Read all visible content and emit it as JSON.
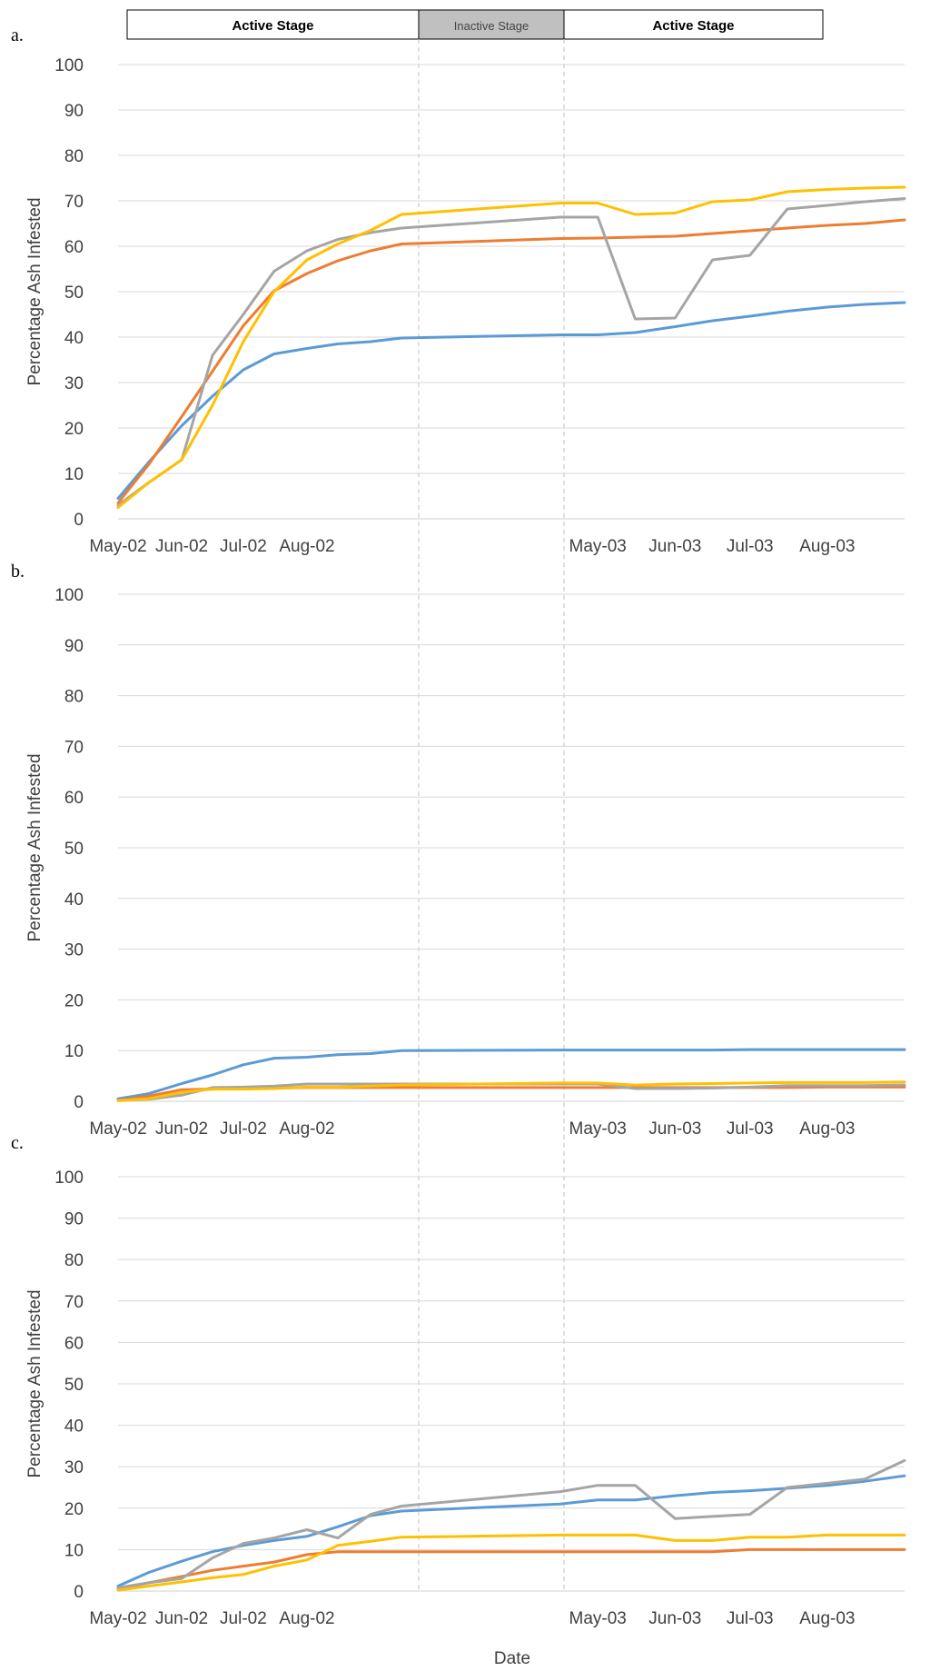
{
  "stages": [
    {
      "label": "Active Stage",
      "fill": "#ffffff",
      "start": "2002-05-01",
      "end": "2002-09-01"
    },
    {
      "label": "Inactive Stage",
      "fill": "#c0c0c0",
      "start": "2002-09-01",
      "end": "2003-05-01"
    },
    {
      "label": "Active Stage",
      "fill": "#ffffff",
      "start": "2003-05-01",
      "end": "2003-09-01"
    }
  ],
  "x_axis_label": "Date",
  "colors": {
    "blue": "#5b9bd5",
    "orange": "#ed7d31",
    "gray": "#a5a5a5",
    "yellow": "#ffc000",
    "grid": "#d9d9d9",
    "divider": "#bfbfbf"
  },
  "chart_data": [
    {
      "type": "line",
      "panel_label": "a.",
      "ylabel": "Percentage Ash Infested",
      "xlabel": "",
      "ylim": [
        0,
        100
      ],
      "yticks": [
        0,
        10,
        20,
        30,
        40,
        50,
        60,
        70,
        80,
        90,
        100
      ],
      "xtick_labels": [
        "May-02",
        "Jun-02",
        "Jul-02",
        "Aug-02",
        "May-03",
        "Jun-03",
        "Jul-03",
        "Aug-03"
      ],
      "x": [
        "2002-05-01",
        "2002-05-16",
        "2002-06-01",
        "2002-06-16",
        "2002-07-01",
        "2002-07-16",
        "2002-08-01",
        "2002-08-16",
        "2002-09-01",
        "2002-09-16",
        "2003-04-16",
        "2003-05-01",
        "2003-05-16",
        "2003-06-01",
        "2003-06-16",
        "2003-07-01",
        "2003-07-16",
        "2003-08-01",
        "2003-08-16",
        "2003-09-01"
      ],
      "series": [
        {
          "color": "#5b9bd5",
          "values": [
            4.5,
            12.5,
            20.5,
            27,
            32.8,
            36.3,
            37.5,
            38.5,
            39,
            39.8,
            40.5,
            40.5,
            41,
            42.3,
            43.6,
            44.6,
            45.7,
            46.6,
            47.2,
            47.6
          ]
        },
        {
          "color": "#ed7d31",
          "values": [
            3.5,
            12,
            22.5,
            32.5,
            42.5,
            50.2,
            54,
            56.8,
            59,
            60.5,
            61.7,
            61.8,
            62,
            62.2,
            62.8,
            63.4,
            64,
            64.6,
            65,
            65.8
          ]
        },
        {
          "color": "#a5a5a5",
          "values": [
            3,
            8,
            13,
            36,
            45,
            54.5,
            59,
            61.5,
            63,
            64,
            66.4,
            66.4,
            44,
            44.2,
            57,
            58,
            68.2,
            69,
            69.8,
            70.5
          ]
        },
        {
          "color": "#ffc000",
          "values": [
            2.5,
            8,
            13,
            25,
            39,
            50,
            57,
            60.5,
            63.5,
            67,
            69.5,
            69.5,
            67,
            67.3,
            69.8,
            70.2,
            72,
            72.5,
            72.8,
            73
          ]
        }
      ]
    },
    {
      "type": "line",
      "panel_label": "b.",
      "ylabel": "Percentage Ash Infested",
      "xlabel": "",
      "ylim": [
        0,
        100
      ],
      "yticks": [
        0,
        10,
        20,
        30,
        40,
        50,
        60,
        70,
        80,
        90,
        100
      ],
      "xtick_labels": [
        "May-02",
        "Jun-02",
        "Jul-02",
        "Aug-02",
        "May-03",
        "Jun-03",
        "Jul-03",
        "Aug-03"
      ],
      "x": [
        "2002-05-01",
        "2002-05-16",
        "2002-06-01",
        "2002-06-16",
        "2002-07-01",
        "2002-07-16",
        "2002-08-01",
        "2002-08-16",
        "2002-09-01",
        "2002-09-16",
        "2003-04-16",
        "2003-05-01",
        "2003-05-16",
        "2003-06-01",
        "2003-06-16",
        "2003-07-01",
        "2003-07-16",
        "2003-08-01",
        "2003-08-16",
        "2003-09-01"
      ],
      "series": [
        {
          "color": "#5b9bd5",
          "values": [
            0.5,
            1.5,
            3.5,
            5.2,
            7.2,
            8.5,
            8.7,
            9.2,
            9.4,
            10,
            10.1,
            10.1,
            10.1,
            10.1,
            10.1,
            10.2,
            10.2,
            10.2,
            10.2,
            10.2
          ]
        },
        {
          "color": "#ed7d31",
          "values": [
            0.2,
            1,
            2.3,
            2.4,
            2.6,
            2.6,
            2.7,
            2.7,
            2.7,
            2.7,
            2.7,
            2.7,
            2.7,
            2.7,
            2.7,
            2.7,
            2.7,
            2.8,
            2.8,
            2.8
          ]
        },
        {
          "color": "#a5a5a5",
          "values": [
            0.2,
            0.4,
            1.2,
            2.7,
            2.8,
            3,
            3.4,
            3.4,
            3.4,
            3.4,
            3.4,
            3.4,
            2.5,
            2.5,
            2.6,
            2.8,
            3.1,
            3.1,
            3.1,
            3.2
          ]
        },
        {
          "color": "#ffc000",
          "values": [
            0.1,
            0.5,
            1.8,
            2.4,
            2.4,
            2.5,
            2.8,
            2.8,
            3,
            3.2,
            3.6,
            3.6,
            3.2,
            3.4,
            3.5,
            3.6,
            3.7,
            3.7,
            3.7,
            3.8
          ]
        }
      ]
    },
    {
      "type": "line",
      "panel_label": "c.",
      "ylabel": "Percentage Ash Infested",
      "xlabel": "Date",
      "ylim": [
        0,
        100
      ],
      "yticks": [
        0,
        10,
        20,
        30,
        40,
        50,
        60,
        70,
        80,
        90,
        100
      ],
      "xtick_labels": [
        "May-02",
        "Jun-02",
        "Jul-02",
        "Aug-02",
        "May-03",
        "Jun-03",
        "Jul-03",
        "Aug-03"
      ],
      "x": [
        "2002-05-01",
        "2002-05-16",
        "2002-06-01",
        "2002-06-16",
        "2002-07-01",
        "2002-07-16",
        "2002-08-01",
        "2002-08-16",
        "2002-09-01",
        "2002-09-16",
        "2003-04-16",
        "2003-05-01",
        "2003-05-16",
        "2003-06-01",
        "2003-06-16",
        "2003-07-01",
        "2003-07-16",
        "2003-08-01",
        "2003-08-16",
        "2003-09-01"
      ],
      "series": [
        {
          "color": "#5b9bd5",
          "values": [
            1.2,
            4.5,
            7.2,
            9.5,
            11,
            12.2,
            13.2,
            15.5,
            18.2,
            19.3,
            21,
            22,
            22,
            23,
            23.8,
            24.2,
            24.8,
            25.5,
            26.5,
            27.8
          ]
        },
        {
          "color": "#ed7d31",
          "values": [
            0.5,
            2,
            3.5,
            5,
            6,
            7,
            8.8,
            9.5,
            9.5,
            9.5,
            9.5,
            9.5,
            9.5,
            9.5,
            9.5,
            10,
            10,
            10,
            10,
            10
          ]
        },
        {
          "color": "#a5a5a5",
          "values": [
            0.8,
            2,
            3,
            8,
            11.5,
            12.8,
            14.8,
            12.8,
            18.5,
            20.5,
            24,
            25.5,
            25.5,
            17.5,
            18,
            18.5,
            25,
            26,
            27,
            31.5
          ]
        },
        {
          "color": "#ffc000",
          "values": [
            0.2,
            1.2,
            2.2,
            3.2,
            4,
            6,
            7.5,
            11,
            12,
            13,
            13.5,
            13.5,
            13.5,
            12.2,
            12.2,
            13,
            13,
            13.5,
            13.5,
            13.5
          ]
        }
      ]
    }
  ]
}
